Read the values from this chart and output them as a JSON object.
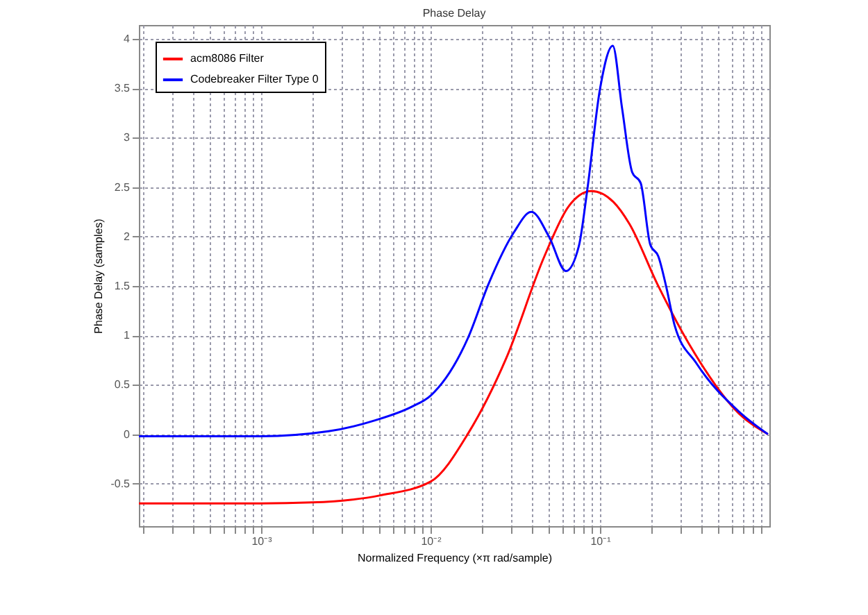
{
  "chart_data": {
    "type": "line",
    "title": "Phase Delay",
    "xlabel": "Normalized Frequency (×π rad/sample)",
    "ylabel": "Phase Delay (samples)",
    "log": "x",
    "grid": true,
    "legend": "top left",
    "line_style": "solid",
    "marker": "none",
    "xlim": [
      0.00019,
      1
    ],
    "ylim": [
      -0.93,
      4.14
    ],
    "xticks": [
      {
        "value": 0.0002,
        "label": null
      },
      {
        "value": 0.0003,
        "label": null
      },
      {
        "value": 0.0004,
        "label": null
      },
      {
        "value": 0.0005,
        "label": null
      },
      {
        "value": 0.0006,
        "label": null
      },
      {
        "value": 0.0007,
        "label": null
      },
      {
        "value": 0.0008,
        "label": null
      },
      {
        "value": 0.0009,
        "label": null
      },
      {
        "value": 0.001,
        "label": "10⁻³"
      },
      {
        "value": 0.002,
        "label": null
      },
      {
        "value": 0.003,
        "label": null
      },
      {
        "value": 0.004,
        "label": null
      },
      {
        "value": 0.005,
        "label": null
      },
      {
        "value": 0.006,
        "label": null
      },
      {
        "value": 0.007,
        "label": null
      },
      {
        "value": 0.008,
        "label": null
      },
      {
        "value": 0.009,
        "label": null
      },
      {
        "value": 0.01,
        "label": "10⁻²"
      },
      {
        "value": 0.02,
        "label": null
      },
      {
        "value": 0.03,
        "label": null
      },
      {
        "value": 0.04,
        "label": null
      },
      {
        "value": 0.05,
        "label": null
      },
      {
        "value": 0.06,
        "label": null
      },
      {
        "value": 0.07,
        "label": null
      },
      {
        "value": 0.08,
        "label": null
      },
      {
        "value": 0.09,
        "label": null
      },
      {
        "value": 0.1,
        "label": "10⁻¹"
      },
      {
        "value": 0.2,
        "label": null
      },
      {
        "value": 0.3,
        "label": null
      },
      {
        "value": 0.4,
        "label": null
      },
      {
        "value": 0.5,
        "label": null
      },
      {
        "value": 0.6,
        "label": null
      },
      {
        "value": 0.7,
        "label": null
      },
      {
        "value": 0.8,
        "label": null
      },
      {
        "value": 0.9,
        "label": null
      }
    ],
    "yticks": [
      -0.5,
      0,
      0.5,
      1,
      1.5,
      2,
      2.5,
      3,
      3.5,
      4
    ],
    "series": [
      {
        "name": "acm8086 Filter",
        "color": "#ff0000",
        "x": [
          0.00019,
          0.001,
          0.002,
          0.005,
          0.01,
          0.0167,
          0.028,
          0.047,
          0.065,
          0.089,
          0.12,
          0.149,
          0.218,
          0.35,
          0.66,
          0.98
        ],
        "values": [
          -0.7,
          -0.7,
          -0.69,
          -0.62,
          -0.48,
          0.01,
          0.77,
          1.8,
          2.3,
          2.46,
          2.35,
          2.13,
          1.52,
          0.86,
          0.21,
          0
        ]
      },
      {
        "name": "Codebreaker Filter Type 0",
        "color": "#0000ff",
        "x": [
          0.00019,
          0.001,
          0.0025,
          0.0047,
          0.0078,
          0.01,
          0.0167,
          0.022,
          0.031,
          0.0394,
          0.05,
          0.063,
          0.075,
          0.084,
          0.1,
          0.119,
          0.135,
          0.155,
          0.174,
          0.198,
          0.221,
          0.247,
          0.276,
          0.37,
          0.66,
          0.98
        ],
        "values": [
          -0.02,
          -0.02,
          0.03,
          0.14,
          0.28,
          0.39,
          0.98,
          1.52,
          2.04,
          2.25,
          2.0,
          1.65,
          1.9,
          2.46,
          3.49,
          3.93,
          3.3,
          2.65,
          2.54,
          1.92,
          1.8,
          1.48,
          1.1,
          0.72,
          0.23,
          0
        ]
      }
    ]
  }
}
